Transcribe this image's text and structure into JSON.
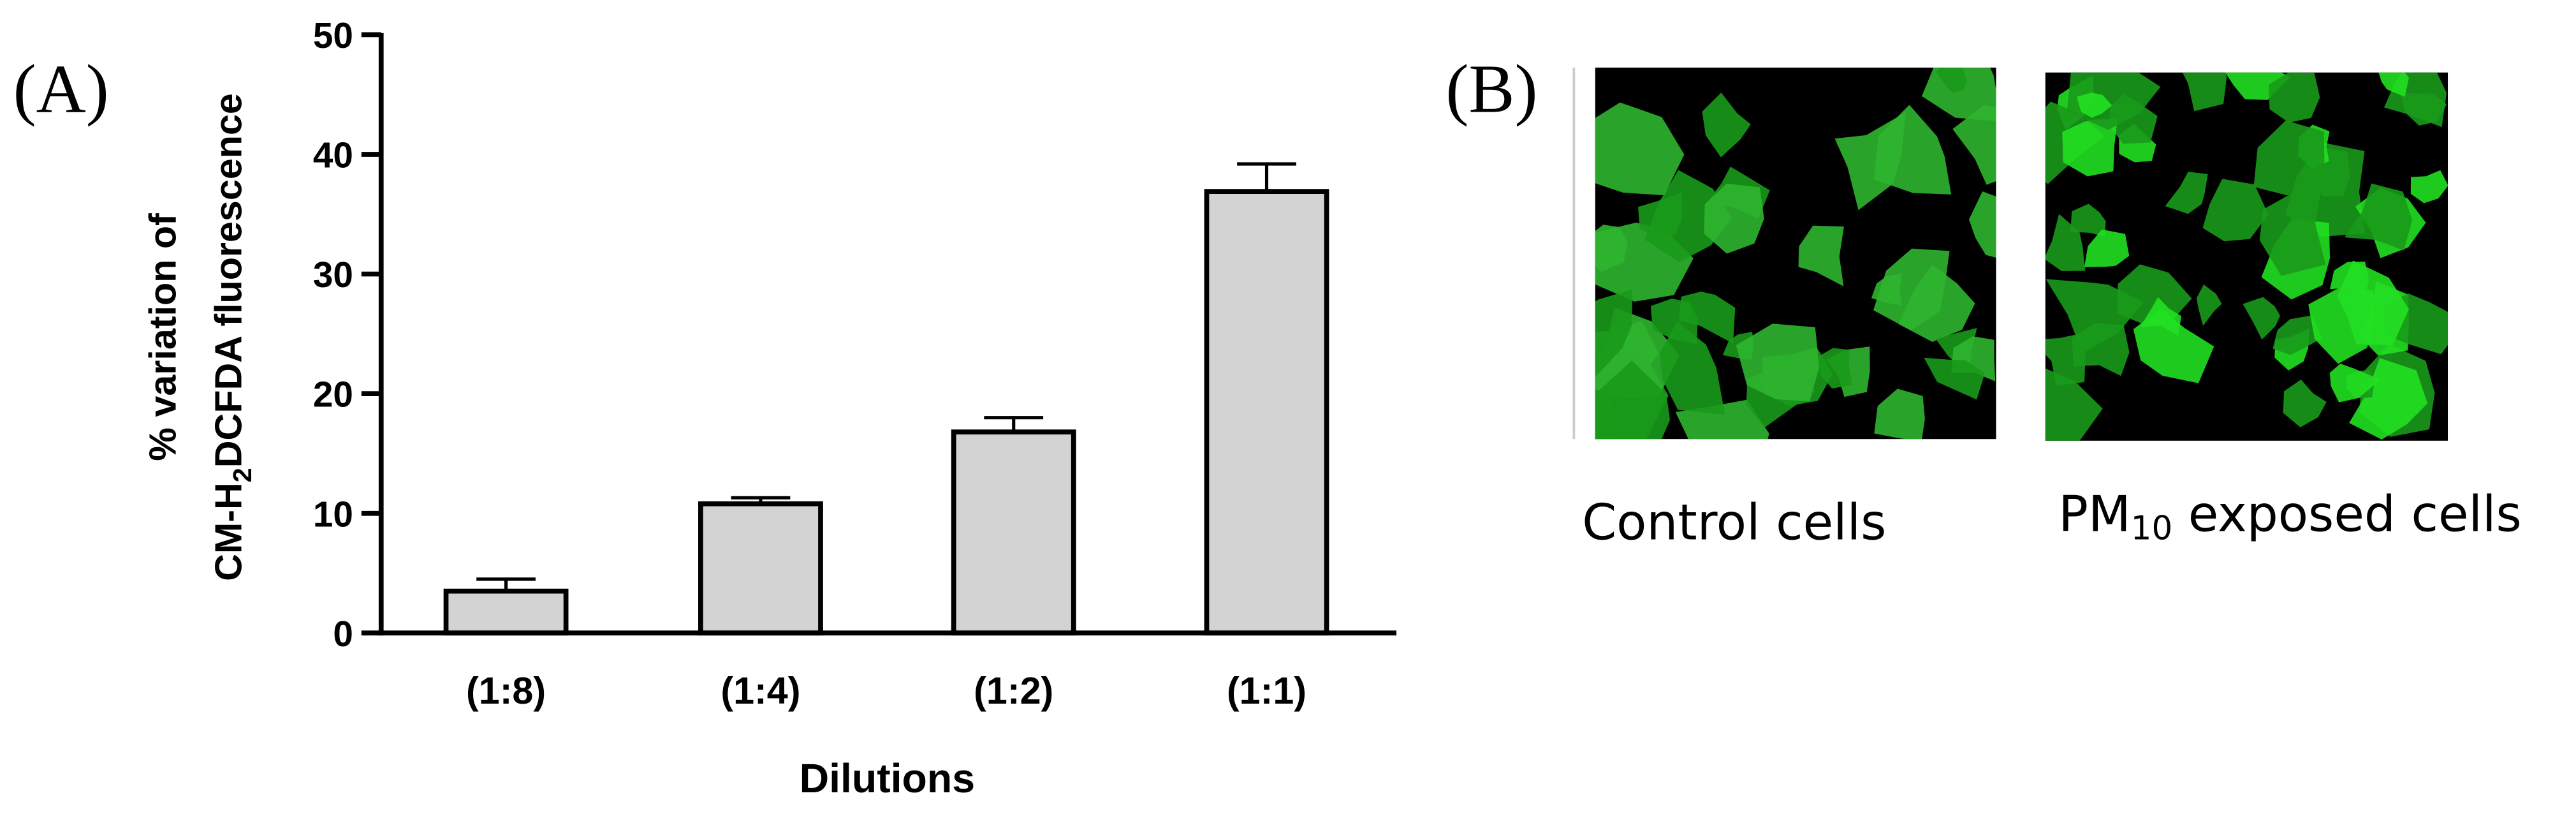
{
  "chart_data": {
    "type": "bar",
    "panel_label": "(A)",
    "categories": [
      "(1:8)",
      "(1:4)",
      "(1:2)",
      "(1:1)"
    ],
    "values": [
      3.5,
      10.8,
      16.8,
      36.9
    ],
    "errors": [
      1.0,
      0.5,
      1.2,
      2.3
    ],
    "color": "#d3d3d3",
    "ylim": [
      0,
      50
    ],
    "yticks": [
      0,
      10,
      20,
      30,
      40,
      50
    ],
    "x_label": "Dilutions",
    "y_label": {
      "line1": "% variation of",
      "before": "CM-H",
      "sub": "2",
      "after": "DCFDA fluorescence"
    }
  },
  "panel_b": {
    "label": "(B)",
    "images": [
      {
        "caption": "Control cells"
      },
      {
        "caption": {
          "before": "PM",
          "sub": "10",
          "after": " exposed cells"
        }
      }
    ]
  }
}
